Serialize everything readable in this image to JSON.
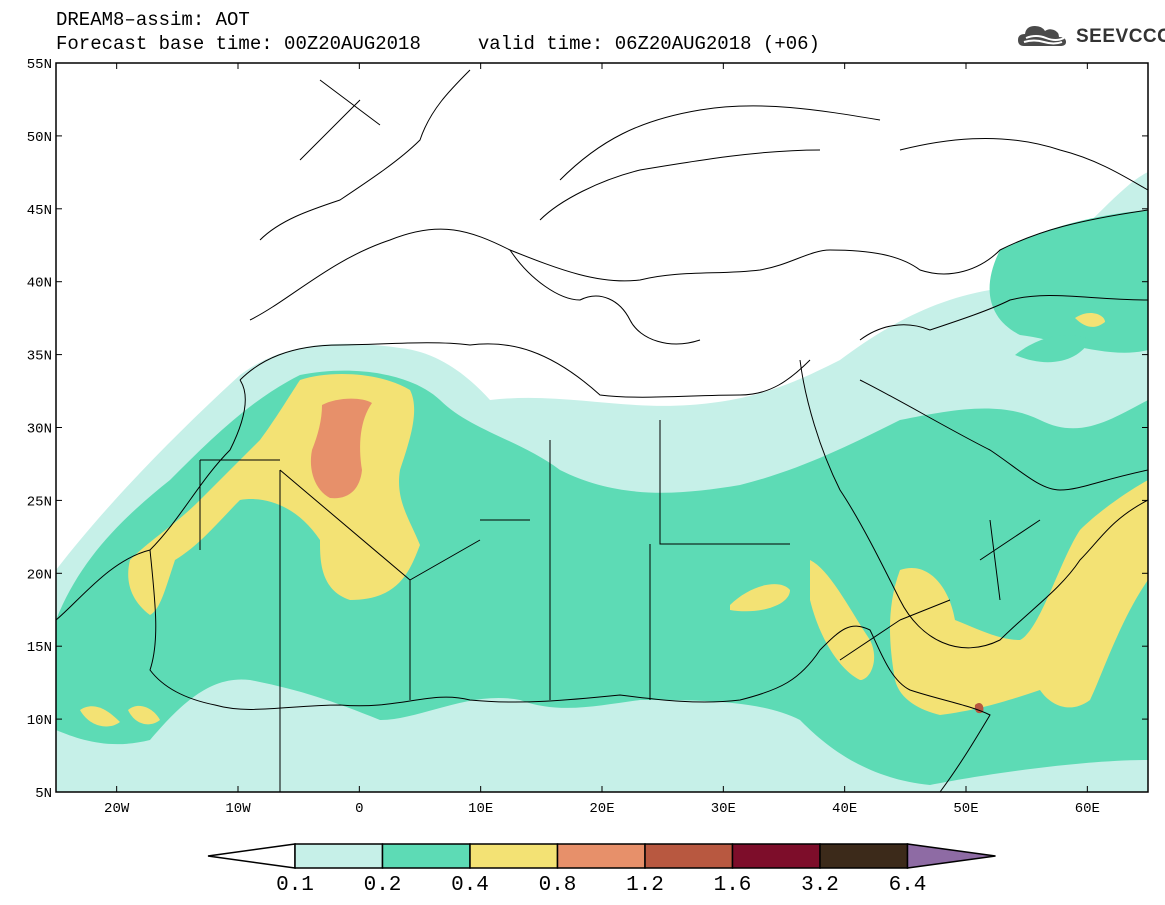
{
  "header": {
    "title_line1": "DREAM8–assim: AOT",
    "title_line2": "Forecast base time: 00Z20AUG2018     valid time: 06Z20AUG2018 (+06)"
  },
  "logo": {
    "text": "SEEVCCC",
    "icon": "cloud-logo-icon"
  },
  "map": {
    "lon_range": [
      -25,
      65
    ],
    "lat_range": [
      5,
      55
    ],
    "x_ticks": [
      {
        "lon": -20,
        "label": "20W"
      },
      {
        "lon": -10,
        "label": "10W"
      },
      {
        "lon": 0,
        "label": "0"
      },
      {
        "lon": 10,
        "label": "10E"
      },
      {
        "lon": 20,
        "label": "20E"
      },
      {
        "lon": 30,
        "label": "30E"
      },
      {
        "lon": 40,
        "label": "40E"
      },
      {
        "lon": 50,
        "label": "50E"
      },
      {
        "lon": 60,
        "label": "60E"
      }
    ],
    "y_ticks": [
      {
        "lat": 55,
        "label": "55N"
      },
      {
        "lat": 50,
        "label": "50N"
      },
      {
        "lat": 45,
        "label": "45N"
      },
      {
        "lat": 40,
        "label": "40N"
      },
      {
        "lat": 35,
        "label": "35N"
      },
      {
        "lat": 30,
        "label": "30N"
      },
      {
        "lat": 25,
        "label": "25N"
      },
      {
        "lat": 20,
        "label": "20N"
      },
      {
        "lat": 15,
        "label": "15N"
      },
      {
        "lat": 10,
        "label": "10N"
      },
      {
        "lat": 5,
        "label": "5N"
      }
    ]
  },
  "colorbar": {
    "colors": [
      "#c6f0e8",
      "#5ddbb5",
      "#f3e274",
      "#e7906a",
      "#b85840",
      "#7d0d2a",
      "#3c2a1a"
    ],
    "under_color": "#ffffff",
    "over_color": "#8e6ba4",
    "labels": [
      "0.1",
      "0.2",
      "0.4",
      "0.8",
      "1.2",
      "1.6",
      "3.2",
      "6.4"
    ]
  }
}
